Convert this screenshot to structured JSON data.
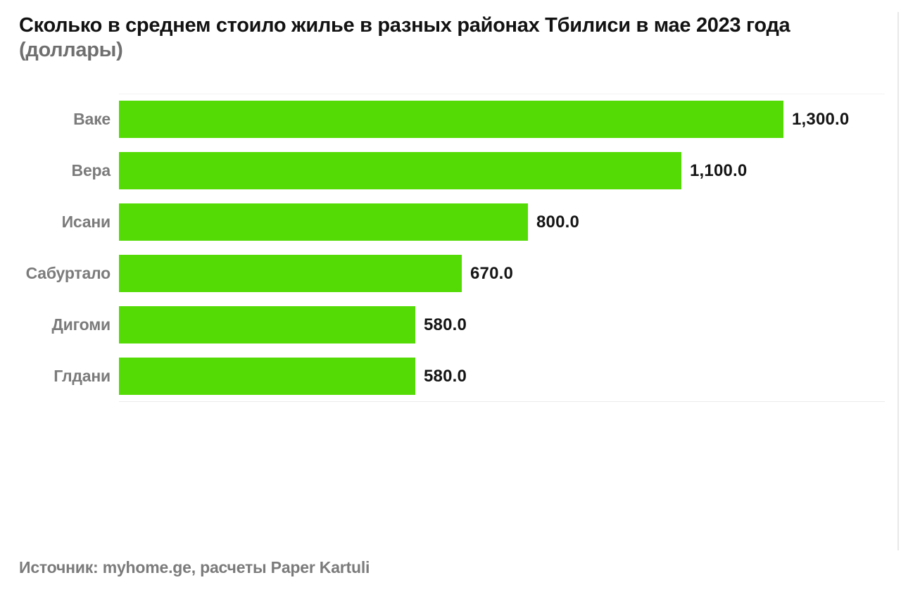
{
  "title": {
    "line1": "Сколько в среднем стоило жилье в разных районах Тбилиси в мае 2023 года",
    "line2": "(доллары)"
  },
  "source": "Источник: myhome.ge, расчеты Paper Kartuli",
  "colors": {
    "bar": "#54DB05",
    "title": "#121212",
    "subtitle": "#6f6f6f",
    "category_label": "#7b7b7b",
    "value_label": "#151515",
    "source_text": "#7b7b7b",
    "axis_line": "#ececec",
    "axis_faint": "#f3f3f3",
    "scrollbar_track": "#e8e8e8",
    "background": "#ffffff"
  },
  "chart_data": {
    "type": "bar",
    "orientation": "horizontal",
    "title": "Сколько в среднем стоило жилье в разных районах Тбилиси в мае 2023 года (доллары)",
    "categories": [
      "Ваке",
      "Вера",
      "Исани",
      "Сабуртало",
      "Дигоми",
      "Глдани"
    ],
    "values": [
      1300,
      1100,
      800,
      670,
      580,
      580
    ],
    "value_labels": [
      "1,300.0",
      "1,100.0",
      "800.0",
      "670.0",
      "580.0",
      "580.0"
    ],
    "xlim": [
      0,
      1300
    ],
    "unit": "доллары",
    "grid": false,
    "legend": false,
    "value_labels_position": "end-of-bar",
    "source": "Источник: myhome.ge, расчеты Paper Kartuli"
  }
}
